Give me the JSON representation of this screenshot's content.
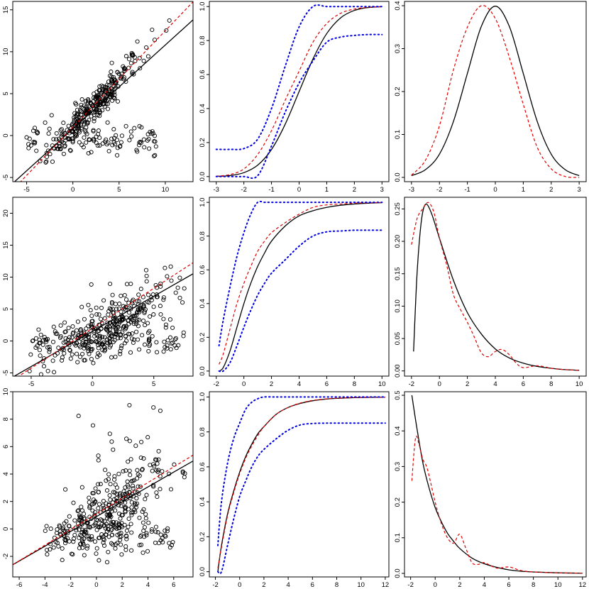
{
  "chart_data": [
    {
      "type": "scatter",
      "panel": "row1-scatter",
      "xlim": [
        -6.5,
        13
      ],
      "ylim": [
        -5.5,
        16
      ],
      "xticks": [
        -5,
        0,
        5,
        10
      ],
      "yticks": [
        -5,
        0,
        5,
        10,
        15
      ],
      "scatter": {
        "seed": 11,
        "n": 420,
        "frac_cluster": 0.72,
        "cluster": {
          "x_mean": 2.5,
          "x_sd": 2.6,
          "slope": 1.15,
          "intercept": 1.0,
          "noise_sd": 1.0
        },
        "flat": {
          "x_min": -5,
          "x_max": 9,
          "y_mean": -0.3,
          "y_sd": 1.0
        }
      },
      "lines": [
        {
          "style": "solid",
          "color": "#000000",
          "slope": 1.0,
          "intercept": 0.8
        },
        {
          "style": "dashed",
          "color": "#e00000",
          "slope": 1.15,
          "intercept": 1.0
        }
      ]
    },
    {
      "type": "line",
      "panel": "row1-cdf",
      "xlim": [
        -3.25,
        3.25
      ],
      "ylim": [
        -0.03,
        1.03
      ],
      "xticks": [
        -3,
        -2,
        -1,
        0,
        1,
        2,
        3
      ],
      "yticks": [
        0.0,
        0.2,
        0.4,
        0.6,
        0.8,
        1.0
      ],
      "series": [
        {
          "style": "solid",
          "color": "#000000",
          "x": [
            -3,
            -2.5,
            -2,
            -1.5,
            -1,
            -0.5,
            0,
            0.5,
            1,
            1.5,
            2,
            2.5,
            3
          ],
          "y": [
            0.001,
            0.006,
            0.023,
            0.067,
            0.159,
            0.309,
            0.5,
            0.691,
            0.841,
            0.933,
            0.977,
            0.994,
            0.999
          ]
        },
        {
          "style": "dashed",
          "color": "#e00000",
          "x": [
            -3,
            -2.5,
            -2,
            -1.5,
            -1,
            -0.5,
            0,
            0.5,
            1,
            1.5,
            2,
            2.5,
            3
          ],
          "y": [
            0.002,
            0.012,
            0.045,
            0.13,
            0.27,
            0.45,
            0.62,
            0.79,
            0.9,
            0.96,
            0.985,
            0.995,
            0.999
          ]
        },
        {
          "style": "dotted",
          "color": "#0000e0",
          "x": [
            -3,
            -2.5,
            -2,
            -1.5,
            -1,
            -0.5,
            0,
            0.5,
            1,
            1.5,
            2,
            2.5,
            3
          ],
          "y": [
            0.16,
            0.16,
            0.165,
            0.22,
            0.4,
            0.65,
            0.88,
            1.0,
            1.0,
            1.0,
            1.0,
            1.0,
            1.0
          ]
        },
        {
          "style": "dotted",
          "color": "#0000e0",
          "x": [
            -3,
            -2.5,
            -2,
            -1.5,
            -1,
            -0.5,
            0,
            0.5,
            1,
            1.5,
            2,
            2.5,
            3
          ],
          "y": [
            0.0,
            0.0,
            0.0,
            0.005,
            0.18,
            0.38,
            0.55,
            0.68,
            0.79,
            0.82,
            0.83,
            0.835,
            0.835
          ]
        }
      ]
    },
    {
      "type": "line",
      "panel": "row1-pdf",
      "xlim": [
        -3.25,
        3.25
      ],
      "ylim": [
        -0.01,
        0.41
      ],
      "xticks": [
        -3,
        -2,
        -1,
        0,
        1,
        2,
        3
      ],
      "yticks": [
        0.0,
        0.1,
        0.2,
        0.3,
        0.4
      ],
      "series": [
        {
          "style": "solid",
          "color": "#000000",
          "x": [
            -3,
            -2.5,
            -2,
            -1.5,
            -1,
            -0.5,
            0,
            0.5,
            1,
            1.5,
            2,
            2.5,
            3
          ],
          "y": [
            0.004,
            0.018,
            0.054,
            0.13,
            0.242,
            0.352,
            0.399,
            0.352,
            0.242,
            0.13,
            0.054,
            0.018,
            0.004
          ]
        },
        {
          "style": "dashed",
          "color": "#e00000",
          "x": [
            -3,
            -2.5,
            -2,
            -1.5,
            -1,
            -0.5,
            0,
            0.5,
            1,
            1.5,
            2,
            2.5,
            3
          ],
          "y": [
            0.005,
            0.04,
            0.12,
            0.25,
            0.35,
            0.4,
            0.37,
            0.28,
            0.17,
            0.07,
            0.02,
            0.002,
            0.0
          ]
        }
      ]
    },
    {
      "type": "scatter",
      "panel": "row2-scatter",
      "xlim": [
        -6.5,
        8.2
      ],
      "ylim": [
        -5.5,
        22.5
      ],
      "xticks": [
        -5,
        0,
        5
      ],
      "yticks": [
        -5,
        0,
        5,
        10,
        15,
        20
      ],
      "scatter": {
        "seed": 23,
        "n": 430,
        "frac_cluster": 0.74,
        "cluster": {
          "x_mean": 1.5,
          "x_sd": 2.6,
          "slope": 1.0,
          "intercept": 1.0,
          "noise_sd": 2.0,
          "skew": 1.6
        },
        "flat": {
          "x_min": -5,
          "x_max": 7.5,
          "y_mean": -0.2,
          "y_sd": 1.1
        }
      },
      "lines": [
        {
          "style": "solid",
          "color": "#000000",
          "slope": 1.1,
          "intercept": 1.5
        },
        {
          "style": "dashed",
          "color": "#e00000",
          "slope": 1.25,
          "intercept": 2.0
        }
      ]
    },
    {
      "type": "line",
      "panel": "row2-cdf",
      "xlim": [
        -2.5,
        10.5
      ],
      "ylim": [
        -0.03,
        1.03
      ],
      "xticks": [
        -2,
        0,
        2,
        4,
        6,
        8,
        10
      ],
      "yticks": [
        0.0,
        0.2,
        0.4,
        0.6,
        0.8,
        1.0
      ],
      "series": [
        {
          "style": "solid",
          "color": "#000000",
          "x": [
            -1.8,
            -1.5,
            -1,
            -0.5,
            0,
            0.5,
            1,
            1.5,
            2,
            3,
            4,
            5,
            6,
            7,
            8,
            9,
            10
          ],
          "y": [
            0.0,
            0.02,
            0.12,
            0.26,
            0.4,
            0.52,
            0.62,
            0.7,
            0.77,
            0.86,
            0.92,
            0.95,
            0.97,
            0.983,
            0.99,
            0.995,
            0.998
          ]
        },
        {
          "style": "dashed",
          "color": "#e00000",
          "x": [
            -1.8,
            -1.5,
            -1,
            -0.5,
            0,
            0.5,
            1,
            1.5,
            2,
            3,
            4,
            5,
            6,
            7,
            8,
            9,
            10
          ],
          "y": [
            0.04,
            0.1,
            0.25,
            0.4,
            0.52,
            0.62,
            0.71,
            0.77,
            0.82,
            0.88,
            0.93,
            0.97,
            0.985,
            0.99,
            0.995,
            0.997,
            0.999
          ]
        },
        {
          "style": "dotted",
          "color": "#0000e0",
          "x": [
            -1.8,
            -1.5,
            -1,
            -0.5,
            0,
            0.5,
            1,
            1.5,
            2,
            3,
            4,
            5,
            6,
            7,
            8,
            9,
            10
          ],
          "y": [
            0.15,
            0.3,
            0.5,
            0.68,
            0.82,
            0.93,
            1.0,
            1.0,
            1.0,
            1.0,
            1.0,
            1.0,
            1.0,
            1.0,
            1.0,
            1.0,
            1.0
          ]
        },
        {
          "style": "dotted",
          "color": "#0000e0",
          "x": [
            -1.8,
            -1.5,
            -1,
            -0.5,
            0,
            0.5,
            1,
            1.5,
            2,
            3,
            4,
            5,
            6,
            7,
            8,
            9,
            10
          ],
          "y": [
            0.0,
            0.0,
            0.05,
            0.15,
            0.26,
            0.36,
            0.45,
            0.52,
            0.58,
            0.66,
            0.74,
            0.8,
            0.825,
            0.83,
            0.835,
            0.835,
            0.835
          ]
        }
      ]
    },
    {
      "type": "line",
      "panel": "row2-pdf",
      "xlim": [
        -2.5,
        10.5
      ],
      "ylim": [
        -0.008,
        0.268
      ],
      "xticks": [
        -2,
        0,
        2,
        4,
        6,
        8,
        10
      ],
      "yticks": [
        0.0,
        0.05,
        0.1,
        0.15,
        0.2,
        0.25
      ],
      "series": [
        {
          "style": "solid",
          "color": "#000000",
          "x": [
            -1.85,
            -1.6,
            -1.3,
            -1,
            -0.6,
            0,
            1,
            2,
            3,
            4,
            5,
            6,
            7,
            8,
            9,
            10
          ],
          "y": [
            0.03,
            0.15,
            0.23,
            0.257,
            0.245,
            0.205,
            0.14,
            0.09,
            0.057,
            0.034,
            0.02,
            0.012,
            0.007,
            0.004,
            0.002,
            0.001
          ]
        },
        {
          "style": "dashed",
          "color": "#e00000",
          "x": [
            -2,
            -1.6,
            -1.2,
            -0.8,
            -0.4,
            0,
            0.5,
            1,
            1.5,
            2,
            2.5,
            3,
            3.5,
            4,
            4.5,
            5,
            5.5,
            6,
            7,
            8,
            9,
            10
          ],
          "y": [
            0.195,
            0.235,
            0.25,
            0.26,
            0.245,
            0.205,
            0.165,
            0.118,
            0.095,
            0.075,
            0.052,
            0.028,
            0.022,
            0.03,
            0.033,
            0.025,
            0.012,
            0.005,
            0.008,
            0.004,
            0.002,
            0.001
          ]
        }
      ]
    },
    {
      "type": "scatter",
      "panel": "row3-scatter",
      "xlim": [
        -6.5,
        7.5
      ],
      "ylim": [
        -3.5,
        10
      ],
      "xticks": [
        -6,
        -4,
        -2,
        0,
        2,
        4,
        6
      ],
      "yticks": [
        -2,
        0,
        2,
        4,
        6,
        8,
        10
      ],
      "scatter": {
        "seed": 37,
        "n": 420,
        "frac_cluster": 0.72,
        "cluster": {
          "x_mean": 1.3,
          "x_sd": 2.1,
          "slope": 0.55,
          "intercept": 0.6,
          "noise_sd": 1.2,
          "skew": 2.4
        },
        "flat": {
          "x_min": -4,
          "x_max": 6,
          "y_mean": -0.5,
          "y_sd": 0.75
        }
      },
      "lines": [
        {
          "style": "solid",
          "color": "#000000",
          "slope": 0.54,
          "intercept": 0.9
        },
        {
          "style": "dashed",
          "color": "#e00000",
          "slope": 0.57,
          "intercept": 1.1
        }
      ]
    },
    {
      "type": "line",
      "panel": "row3-cdf",
      "xlim": [
        -2.5,
        12.3
      ],
      "ylim": [
        -0.03,
        1.03
      ],
      "xticks": [
        -2,
        0,
        2,
        4,
        6,
        8,
        10,
        12
      ],
      "yticks": [
        0.0,
        0.2,
        0.4,
        0.6,
        0.8,
        1.0
      ],
      "series": [
        {
          "style": "solid",
          "color": "#000000",
          "x": [
            -1.8,
            -1.5,
            -1,
            -0.5,
            0,
            0.5,
            1,
            1.5,
            2,
            3,
            4,
            5,
            6,
            7,
            8,
            10,
            12
          ],
          "y": [
            0.0,
            0.15,
            0.33,
            0.46,
            0.57,
            0.66,
            0.73,
            0.79,
            0.83,
            0.9,
            0.94,
            0.963,
            0.978,
            0.987,
            0.992,
            0.997,
            0.999
          ]
        },
        {
          "style": "dashed",
          "color": "#e00000",
          "x": [
            -1.8,
            -1.5,
            -1,
            -0.5,
            0,
            0.5,
            1,
            1.5,
            2,
            3,
            4,
            5,
            6,
            7,
            8,
            10,
            12
          ],
          "y": [
            0.02,
            0.14,
            0.32,
            0.45,
            0.56,
            0.65,
            0.72,
            0.78,
            0.83,
            0.9,
            0.94,
            0.965,
            0.98,
            0.988,
            0.993,
            0.997,
            0.999
          ]
        },
        {
          "style": "dotted",
          "color": "#0000e0",
          "x": [
            -1.8,
            -1.5,
            -1,
            -0.5,
            0,
            0.5,
            1,
            1.5,
            2,
            3,
            4,
            5,
            6,
            7,
            8,
            10,
            12
          ],
          "y": [
            0.15,
            0.4,
            0.62,
            0.76,
            0.85,
            0.93,
            0.97,
            0.99,
            1.0,
            1.0,
            1.0,
            1.0,
            1.0,
            1.0,
            1.0,
            1.0,
            1.0
          ]
        },
        {
          "style": "dotted",
          "color": "#0000e0",
          "x": [
            -1.8,
            -1.5,
            -1,
            -0.5,
            0,
            0.5,
            1,
            1.5,
            2,
            3,
            4,
            5,
            6,
            7,
            8,
            10,
            12
          ],
          "y": [
            0.0,
            0.0,
            0.15,
            0.3,
            0.43,
            0.52,
            0.6,
            0.66,
            0.7,
            0.76,
            0.81,
            0.84,
            0.848,
            0.85,
            0.85,
            0.85,
            0.85
          ]
        }
      ]
    },
    {
      "type": "line",
      "panel": "row3-pdf",
      "xlim": [
        -2.5,
        12.3
      ],
      "ylim": [
        -0.01,
        0.51
      ],
      "xticks": [
        -2,
        0,
        2,
        4,
        6,
        8,
        10,
        12
      ],
      "yticks": [
        0.0,
        0.1,
        0.2,
        0.3,
        0.4,
        0.5
      ],
      "series": [
        {
          "style": "solid",
          "color": "#000000",
          "x": [
            -1.9,
            -1.5,
            -1,
            -0.5,
            0,
            0.5,
            1,
            1.5,
            2,
            3,
            4,
            5,
            6,
            7,
            8,
            10,
            12
          ],
          "y": [
            0.5,
            0.41,
            0.31,
            0.24,
            0.185,
            0.145,
            0.113,
            0.09,
            0.07,
            0.043,
            0.027,
            0.017,
            0.01,
            0.006,
            0.004,
            0.0015,
            0.0005
          ]
        },
        {
          "style": "dashed",
          "color": "#e00000",
          "x": [
            -1.9,
            -1.6,
            -1.3,
            -1,
            -0.7,
            -0.4,
            0,
            0.5,
            1,
            1.5,
            2,
            2.5,
            3,
            3.5,
            4,
            5,
            6,
            7,
            8,
            10,
            12
          ],
          "y": [
            0.26,
            0.38,
            0.36,
            0.32,
            0.3,
            0.26,
            0.2,
            0.14,
            0.1,
            0.085,
            0.11,
            0.07,
            0.03,
            0.025,
            0.03,
            0.015,
            0.018,
            0.008,
            0.004,
            0.0015,
            0.0005
          ]
        }
      ]
    }
  ]
}
